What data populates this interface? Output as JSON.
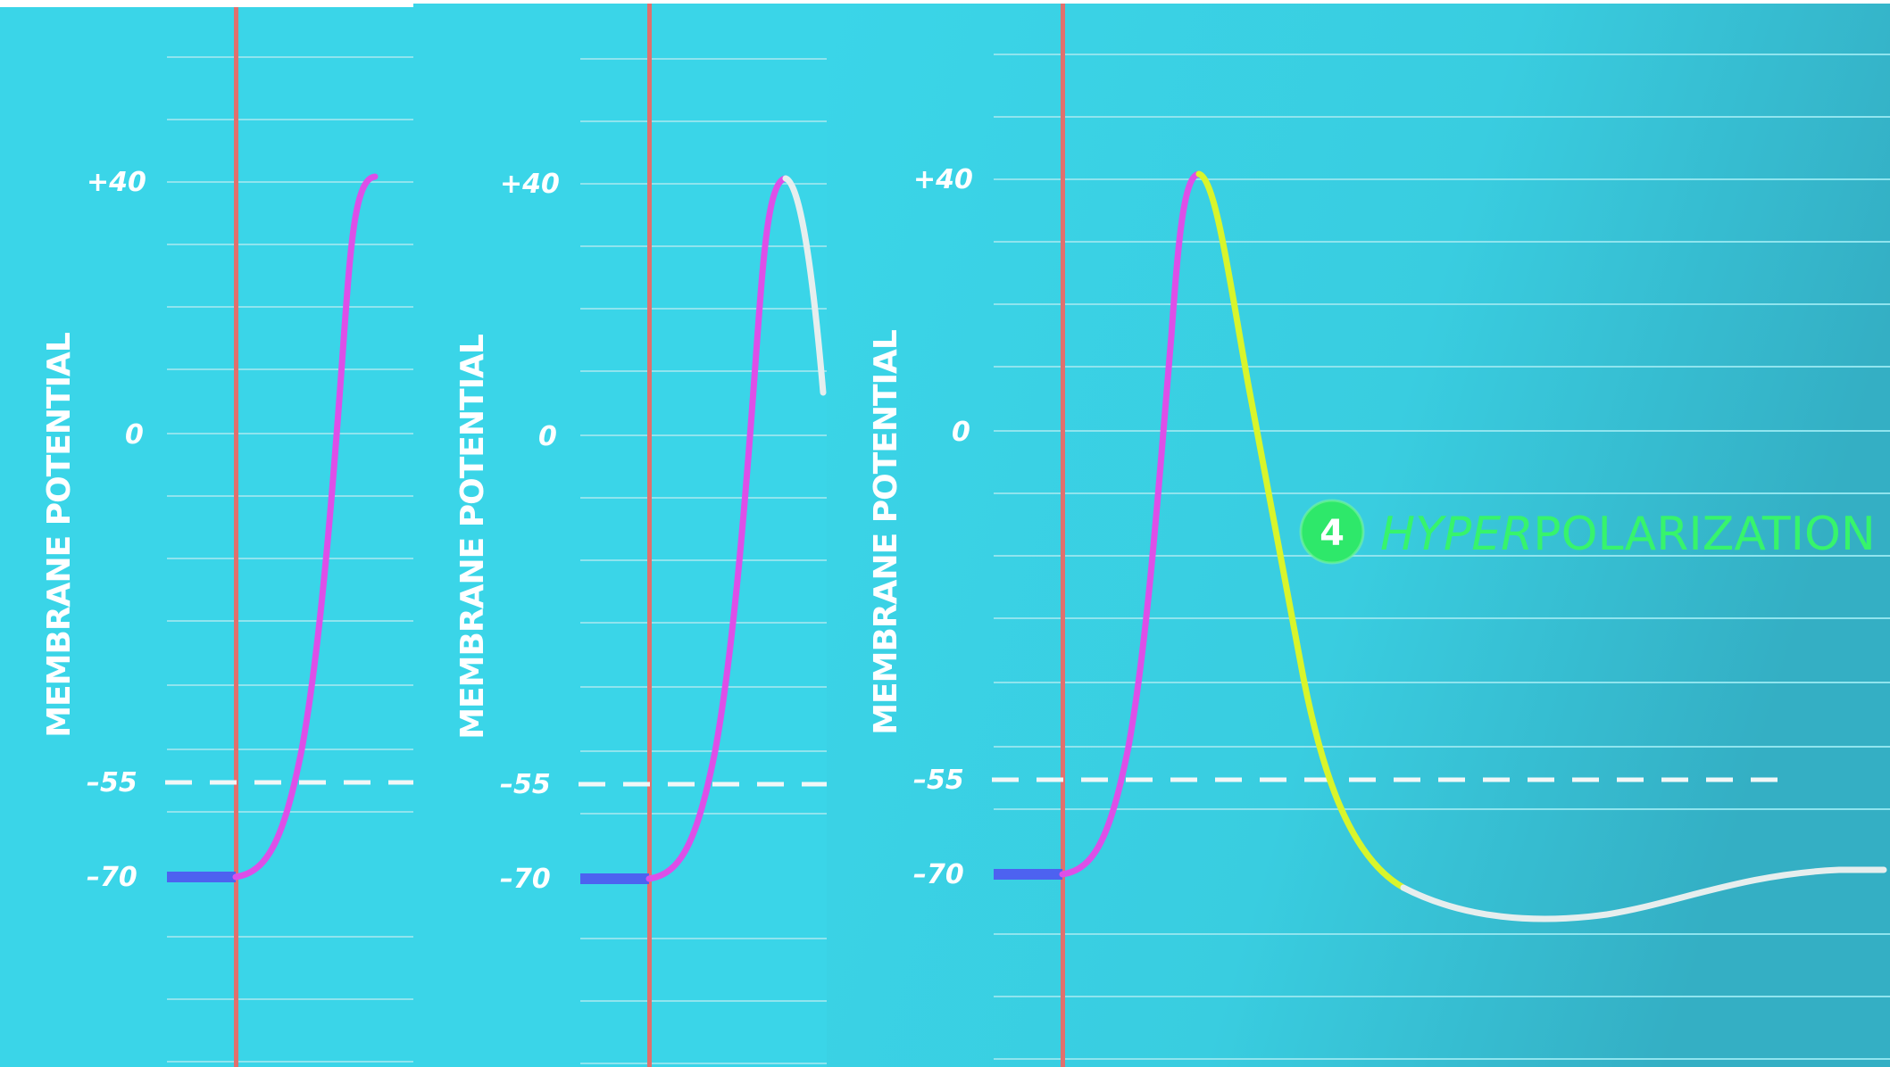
{
  "colors": {
    "background": "#3ad5e8",
    "gridline": "#8fe4ee",
    "stimulus_line": "#e0706e",
    "resting": "#4d62f0",
    "depolarization": "#dd4fe8",
    "repolarization": "#d9f52b",
    "continuation": "#e6eeee",
    "threshold": "#f2f7f7",
    "annotation": "#37f46c"
  },
  "chart_data": [
    {
      "type": "line",
      "ylabel": "MEMBRANE POTENTIAL",
      "y_ticks": [
        "+40",
        "0",
        "-55",
        "-70"
      ],
      "y_tick_values": [
        40,
        0,
        -55,
        -70
      ],
      "threshold": -55,
      "resting_potential": -70,
      "grid": true,
      "series": [
        {
          "phase": "resting",
          "color": "#4d62f0",
          "values": [
            -70,
            -70
          ]
        },
        {
          "phase": "depolarization",
          "color": "#dd4fe8",
          "values": [
            -70,
            -66,
            -55,
            -20,
            20,
            40
          ]
        }
      ]
    },
    {
      "type": "line",
      "ylabel": "MEMBRANE POTENTIAL",
      "y_ticks": [
        "+40",
        "0",
        "-55",
        "-70"
      ],
      "y_tick_values": [
        40,
        0,
        -55,
        -70
      ],
      "threshold": -55,
      "resting_potential": -70,
      "grid": true,
      "series": [
        {
          "phase": "resting",
          "color": "#4d62f0",
          "values": [
            -70,
            -70
          ]
        },
        {
          "phase": "depolarization",
          "color": "#dd4fe8",
          "values": [
            -70,
            -66,
            -55,
            -20,
            20,
            40
          ]
        },
        {
          "phase": "repolarization",
          "color": "#e6eeee",
          "values": [
            40,
            30,
            10
          ]
        }
      ]
    },
    {
      "type": "line",
      "ylabel": "MEMBRANE POTENTIAL",
      "y_ticks": [
        "+40",
        "0",
        "-55",
        "-70"
      ],
      "y_tick_values": [
        40,
        0,
        -55,
        -70
      ],
      "threshold": -55,
      "resting_potential": -70,
      "grid": true,
      "annotation": {
        "number": "4",
        "text_italic": "HYPER",
        "text": "POLARIZATION"
      },
      "series": [
        {
          "phase": "resting",
          "color": "#4d62f0",
          "values": [
            -70,
            -70
          ]
        },
        {
          "phase": "depolarization",
          "color": "#dd4fe8",
          "values": [
            -70,
            -66,
            -55,
            -20,
            20,
            40
          ]
        },
        {
          "phase": "repolarization",
          "color": "#d9f52b",
          "values": [
            40,
            10,
            -30,
            -55,
            -72
          ]
        },
        {
          "phase": "hyperpolarization",
          "color": "#e6eeee",
          "values": [
            -72,
            -77,
            -78,
            -75,
            -70
          ]
        }
      ]
    }
  ]
}
